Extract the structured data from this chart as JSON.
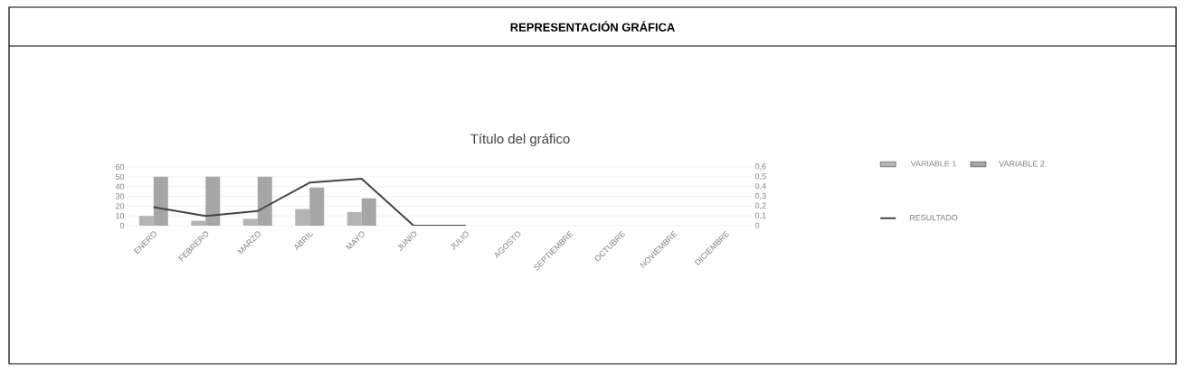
{
  "chart_data": {
    "type": "bar",
    "title": "REPRESENTACIÓN GRÁFICA",
    "subtitle": "Título del gráfico",
    "categories": [
      "ENERO",
      "FEBRERO",
      "MARZO",
      "ABRIL",
      "MAYO",
      "JUNIO",
      "JULIO",
      "AGOSTO",
      "SEPTIEMBRE",
      "OCTUBRE",
      "NOVIEMBRE",
      "DICIEMBRE"
    ],
    "series": [
      {
        "name": "VARIABLE 1",
        "color": "#b4b4b4",
        "values": [
          10,
          5,
          7,
          17,
          14,
          null,
          null,
          null,
          null,
          null,
          null,
          null
        ]
      },
      {
        "name": "VARIABLE 2",
        "color": "#a6a6a6",
        "values": [
          50,
          50,
          50,
          39,
          28,
          null,
          null,
          null,
          null,
          null,
          null,
          null
        ]
      },
      {
        "name": "RESULTADO",
        "type": "line",
        "axis": "y2",
        "color": "#3c464c",
        "values": [
          0.19,
          0.1,
          0.15,
          0.44,
          0.48,
          0,
          0,
          null,
          null,
          null,
          null,
          null
        ]
      }
    ],
    "ylim": [
      0,
      60
    ],
    "yticks": [
      0,
      10,
      20,
      30,
      40,
      50,
      60
    ],
    "y2lim": [
      0,
      0.6
    ],
    "y2ticks": [
      {
        "value": 0,
        "label": "0"
      },
      {
        "value": 0.1,
        "label": "0,1"
      },
      {
        "value": 0.2,
        "label": "0,2"
      },
      {
        "value": 0.3,
        "label": "0,3"
      },
      {
        "value": 0.4,
        "label": "0,4"
      },
      {
        "value": 0.5,
        "label": "0,5"
      },
      {
        "value": 0.6,
        "label": "0,6"
      }
    ],
    "grid": "y",
    "legend": "right",
    "line_style": "solid",
    "marker": "none"
  }
}
